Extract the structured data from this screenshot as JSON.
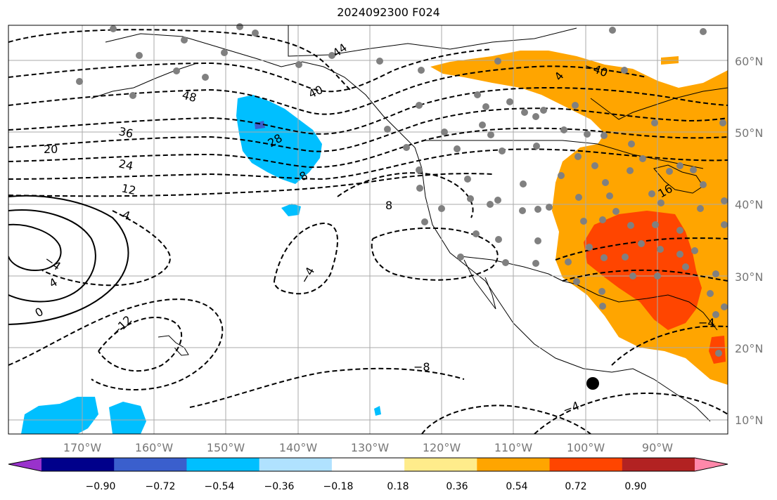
{
  "title": "2024092300 F024",
  "lon_ticks": [
    "170°W",
    "160°W",
    "150°W",
    "140°W",
    "130°W",
    "120°W",
    "110°W",
    "100°W",
    "90°W"
  ],
  "lat_ticks": [
    "60°N",
    "50°N",
    "40°N",
    "30°N",
    "20°N",
    "10°N"
  ],
  "colorbar": {
    "colors": [
      "#9932cc",
      "#00008b",
      "#3a5fcd",
      "#00bfff",
      "#b0e2ff",
      "#ffffff",
      "#ffec8b",
      "#ffa500",
      "#ff4500",
      "#b22222",
      "#ff88aa"
    ],
    "tick_labels": [
      "−0.90",
      "−0.72",
      "−0.54",
      "−0.36",
      "−0.18",
      "0.18",
      "0.36",
      "0.54",
      "0.72",
      "0.90"
    ]
  },
  "contour_labels": [
    "48",
    "44",
    "40",
    "36",
    "28",
    "24",
    "20",
    "12",
    "8",
    "4",
    "−4",
    "0",
    "4",
    "8",
    "−4",
    "−8",
    "−12",
    "−4",
    "4",
    "−40",
    "−4",
    "16",
    "4",
    "4"
  ],
  "colors": {
    "orange": "#ffa500",
    "red": "#ff4500",
    "blue": "#00bfff",
    "grid": "#aaaaaa",
    "station": "#808080"
  }
}
